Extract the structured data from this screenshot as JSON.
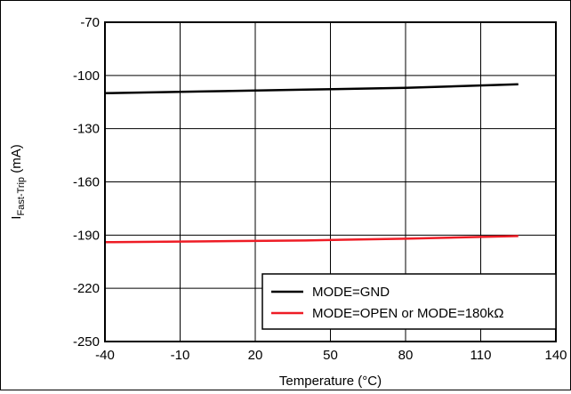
{
  "chart_data": {
    "type": "line",
    "xlabel": "Temperature (°C)",
    "ylabel": {
      "main": "I",
      "subscript": "Fast-Trip",
      "unit": " (mA)"
    },
    "xlim": [
      -40,
      140
    ],
    "ylim": [
      -250,
      -70
    ],
    "xticks": [
      -40,
      -10,
      20,
      50,
      80,
      110,
      140
    ],
    "yticks": [
      -70,
      -100,
      -130,
      -160,
      -190,
      -220,
      -250
    ],
    "grid": true,
    "legend": {
      "placement": "bottom-right",
      "entries": [
        "MODE=GND",
        "MODE=OPEN or MODE=180kΩ"
      ]
    },
    "series": [
      {
        "name": "MODE=GND",
        "color": "#000000",
        "x": [
          -40,
          0,
          40,
          80,
          125
        ],
        "y": [
          -110,
          -109,
          -108,
          -107,
          -105
        ]
      },
      {
        "name": "MODE=OPEN or MODE=180kΩ",
        "color": "#ee1c25",
        "x": [
          -40,
          0,
          40,
          80,
          125
        ],
        "y": [
          -194,
          -193.5,
          -193,
          -192,
          -190.5
        ]
      }
    ]
  }
}
